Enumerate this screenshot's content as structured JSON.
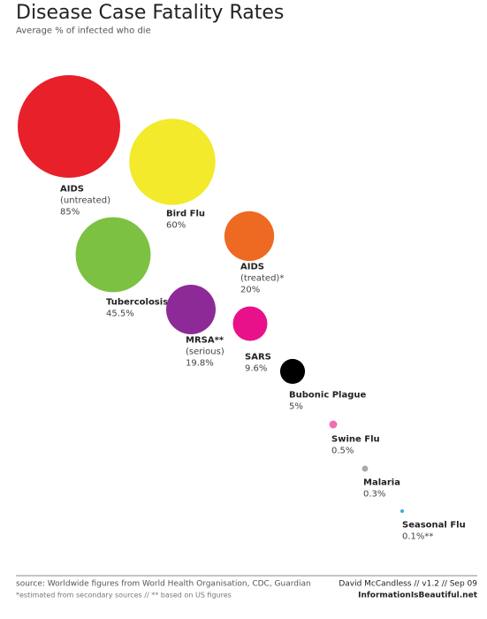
{
  "chart_data": {
    "type": "bubble",
    "title": "Disease Case Fatality Rates",
    "subtitle": "Average % of infected who die",
    "categories": [
      "AIDS",
      "Bird Flu",
      "AIDS",
      "Tubercolosis",
      "MRSA**",
      "SARS",
      "Bubonic Plague",
      "Swine Flu",
      "Malaria",
      "Seasonal Flu"
    ],
    "notes": [
      "(untreated)",
      null,
      "(treated)*",
      null,
      "(serious)",
      null,
      null,
      null,
      null,
      null
    ],
    "values": [
      85,
      60,
      20,
      45.5,
      19.8,
      9.6,
      5,
      0.5,
      0.3,
      0.1
    ],
    "value_labels": [
      "85%",
      "60%",
      "20%",
      "45.5%",
      "19.8%",
      "9.6%",
      "5%",
      "0.5%",
      "0.3%",
      "0.1%**"
    ],
    "colors": [
      "#e8202a",
      "#f2ea2a",
      "#ee6a22",
      "#7cc142",
      "#8e2a98",
      "#e8118a",
      "#000000",
      "#ee6fb0",
      "#a9a9a9",
      "#3aa8e0"
    ]
  },
  "footer": {
    "source": "source: Worldwide figures from World Health Organisation, CDC, Guardian",
    "note": "*estimated from secondary sources // ** based on US figures",
    "author": "David McCandless // v1.2 // Sep 09",
    "site": "InformationIsBeautiful.net"
  }
}
